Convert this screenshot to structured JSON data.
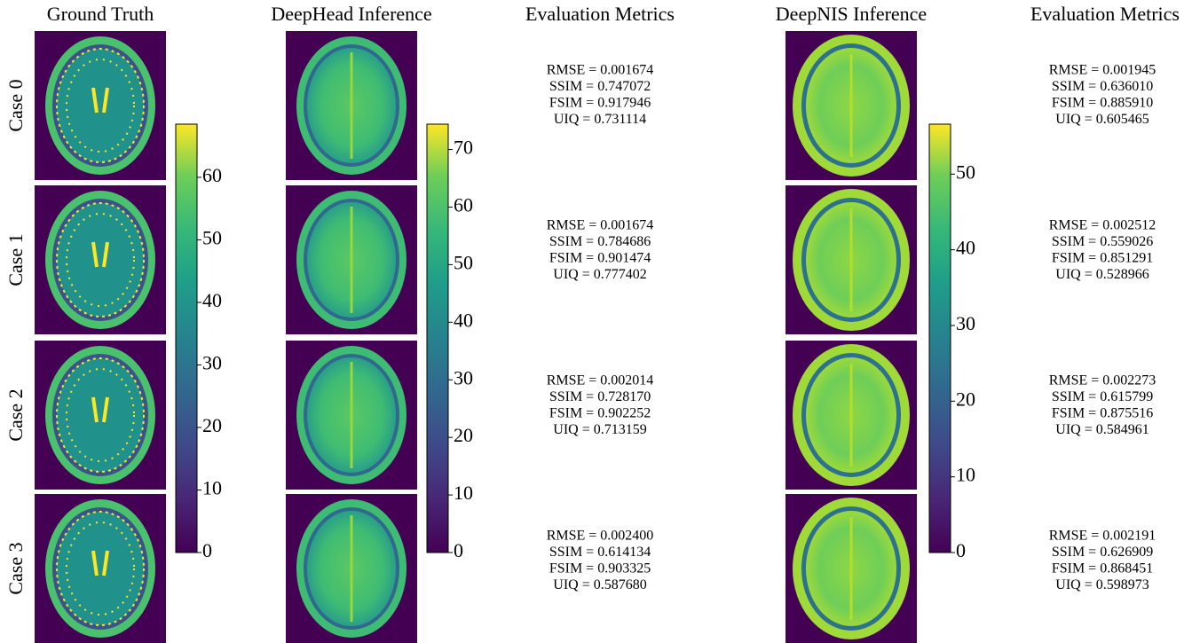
{
  "titles": [
    "Ground Truth",
    "DeepHead Inference",
    "Evaluation Metrics",
    "DeepNIS Inference",
    "Evaluation Metrics"
  ],
  "row_labels": [
    "Case 0",
    "Case 1",
    "Case 2",
    "Case 3"
  ],
  "colorbars": [
    {
      "lim": [
        0,
        68.5
      ],
      "ticks": [
        0,
        10,
        20,
        30,
        40,
        50,
        60
      ]
    },
    {
      "lim": [
        0,
        74.4
      ],
      "ticks": [
        0,
        10,
        20,
        30,
        40,
        50,
        60,
        70
      ]
    },
    {
      "lim": [
        0,
        56.6
      ],
      "ticks": [
        0,
        10,
        20,
        30,
        40,
        50
      ]
    }
  ],
  "metrics": [
    [
      [
        "RMSE = 0.001674",
        "SSIM = 0.747072",
        "FSIM = 0.917946",
        "UIQ = 0.731114"
      ],
      [
        "RMSE = 0.001674",
        "SSIM = 0.784686",
        "FSIM = 0.901474",
        "UIQ = 0.777402"
      ],
      [
        "RMSE = 0.002014",
        "SSIM = 0.728170",
        "FSIM = 0.902252",
        "UIQ = 0.713159"
      ],
      [
        "RMSE = 0.002400",
        "SSIM = 0.614134",
        "FSIM = 0.903325",
        "UIQ = 0.587680"
      ]
    ],
    [
      [
        "RMSE = 0.001945",
        "SSIM = 0.636010",
        "FSIM = 0.885910",
        "UIQ = 0.605465"
      ],
      [
        "RMSE = 0.002512",
        "SSIM = 0.559026",
        "FSIM = 0.851291",
        "UIQ = 0.528966"
      ],
      [
        "RMSE = 0.002273",
        "SSIM = 0.615799",
        "FSIM = 0.875516",
        "UIQ = 0.584961"
      ],
      [
        "RMSE = 0.002191",
        "SSIM = 0.626909",
        "FSIM = 0.868451",
        "UIQ = 0.598973"
      ]
    ]
  ]
}
